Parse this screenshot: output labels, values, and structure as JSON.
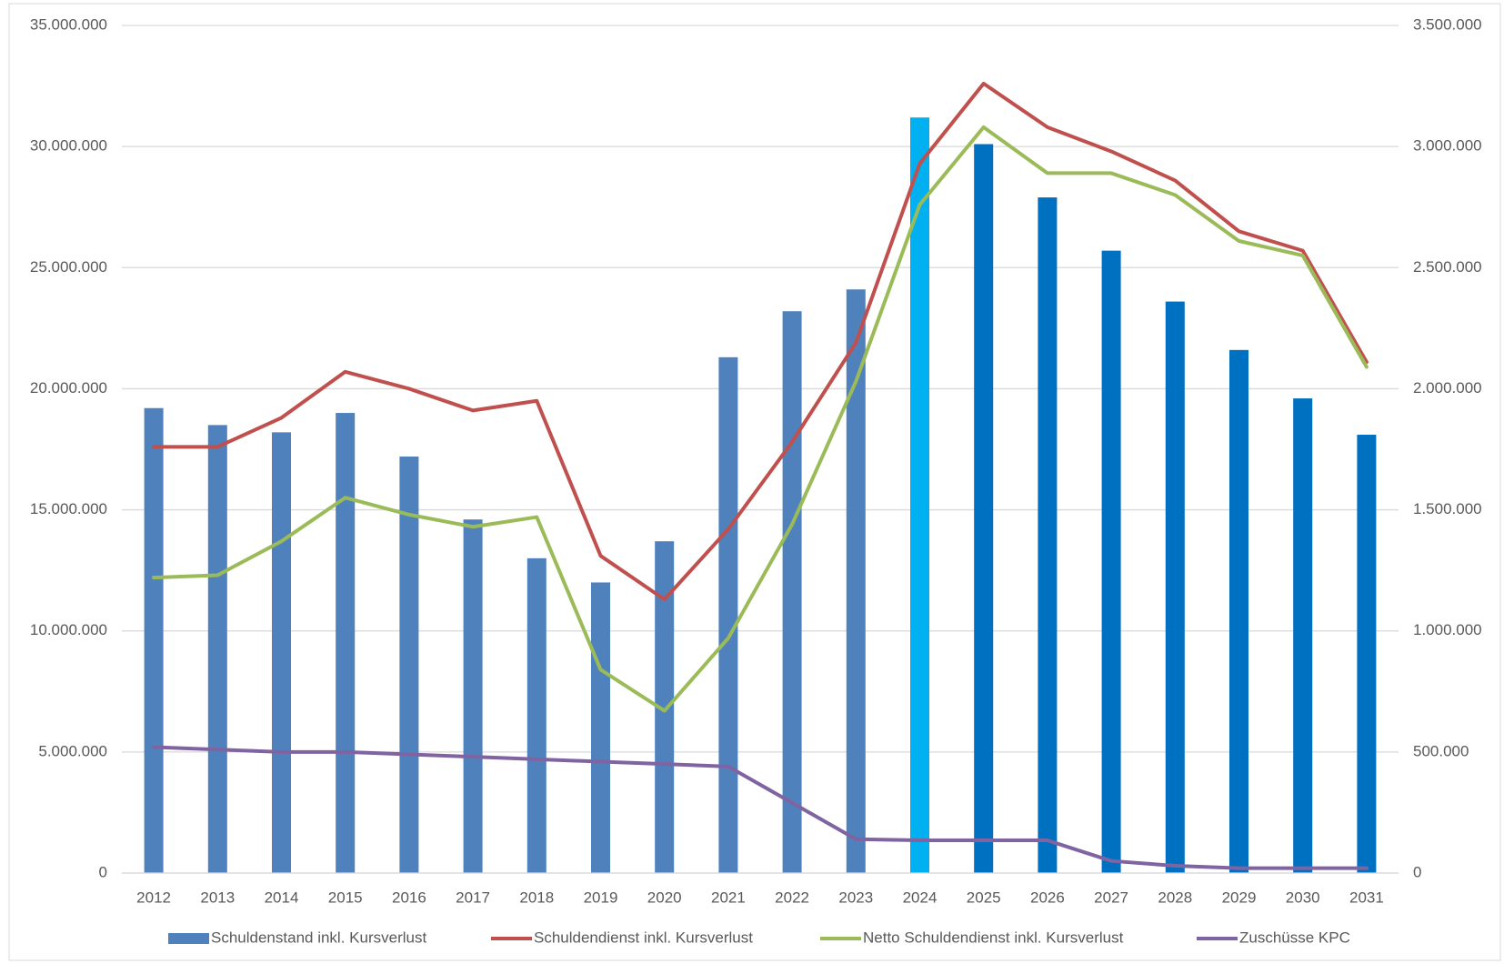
{
  "chart_data": {
    "type": "bar",
    "categories": [
      "2012",
      "2013",
      "2014",
      "2015",
      "2016",
      "2017",
      "2018",
      "2019",
      "2020",
      "2021",
      "2022",
      "2023",
      "2024",
      "2025",
      "2026",
      "2027",
      "2028",
      "2029",
      "2030",
      "2031"
    ],
    "series": [
      {
        "name": "Schuldenstand inkl. Kursverlust",
        "type": "bar",
        "color": "#4f81bd",
        "colors": [
          "#4f81bd",
          "#4f81bd",
          "#4f81bd",
          "#4f81bd",
          "#4f81bd",
          "#4f81bd",
          "#4f81bd",
          "#4f81bd",
          "#4f81bd",
          "#4f81bd",
          "#4f81bd",
          "#4f81bd",
          "#00b0f0",
          "#0070c0",
          "#0070c0",
          "#0070c0",
          "#0070c0",
          "#0070c0",
          "#0070c0",
          "#0070c0"
        ],
        "values": [
          19200000,
          18500000,
          18200000,
          19000000,
          17200000,
          14600000,
          13000000,
          12000000,
          13700000,
          21300000,
          23200000,
          24100000,
          31200000,
          30100000,
          27900000,
          25700000,
          23600000,
          21600000,
          19600000,
          18100000
        ]
      },
      {
        "name": "Schuldendienst inkl. Kursverlust",
        "type": "line",
        "axis": "y2",
        "color": "#c0504d",
        "values": [
          1760000,
          1760000,
          1880000,
          2070000,
          2000000,
          1910000,
          1950000,
          1310000,
          1130000,
          1420000,
          1780000,
          2190000,
          2930000,
          3260000,
          3080000,
          2980000,
          2860000,
          2650000,
          2570000,
          2110000
        ]
      },
      {
        "name": "Netto Schuldendienst inkl. Kursverlust",
        "type": "line",
        "axis": "y2",
        "color": "#9bbb59",
        "values": [
          1220000,
          1230000,
          1370000,
          1550000,
          1480000,
          1430000,
          1470000,
          840000,
          670000,
          970000,
          1440000,
          2030000,
          2760000,
          3080000,
          2890000,
          2890000,
          2800000,
          2610000,
          2550000,
          2090000
        ]
      },
      {
        "name": "Zuschüsse KPC",
        "type": "line",
        "axis": "y2",
        "color": "#8064a2",
        "values": [
          520000,
          510000,
          500000,
          500000,
          490000,
          480000,
          470000,
          460000,
          450000,
          440000,
          290000,
          140000,
          135000,
          135000,
          135000,
          50000,
          30000,
          20000,
          20000,
          20000
        ]
      }
    ],
    "ylim": [
      0,
      35000000
    ],
    "yticks": [
      0,
      {
        "value": 5000000,
        "label": "5.000.000"
      },
      {
        "value": 10000000,
        "label": "10.000.000"
      },
      {
        "value": 15000000,
        "label": "15.000.000"
      },
      {
        "value": 20000000,
        "label": "20.000.000"
      },
      {
        "value": 25000000,
        "label": "25.000.000"
      },
      {
        "value": 30000000,
        "label": "30.000.000"
      },
      {
        "value": 35000000,
        "label": "35.000.000"
      }
    ],
    "y2lim": [
      0,
      3500000
    ],
    "y2ticks": [
      0,
      {
        "value": 500000,
        "label": "500.000"
      },
      {
        "value": 1000000,
        "label": "1.000.000"
      },
      {
        "value": 1500000,
        "label": "1.500.000"
      },
      {
        "value": 2000000,
        "label": "2.000.000"
      },
      {
        "value": 2500000,
        "label": "2.500.000"
      },
      {
        "value": 3000000,
        "label": "3.000.000"
      },
      {
        "value": 3500000,
        "label": "3.500.000"
      }
    ],
    "grid": true,
    "legend": "bottom"
  }
}
